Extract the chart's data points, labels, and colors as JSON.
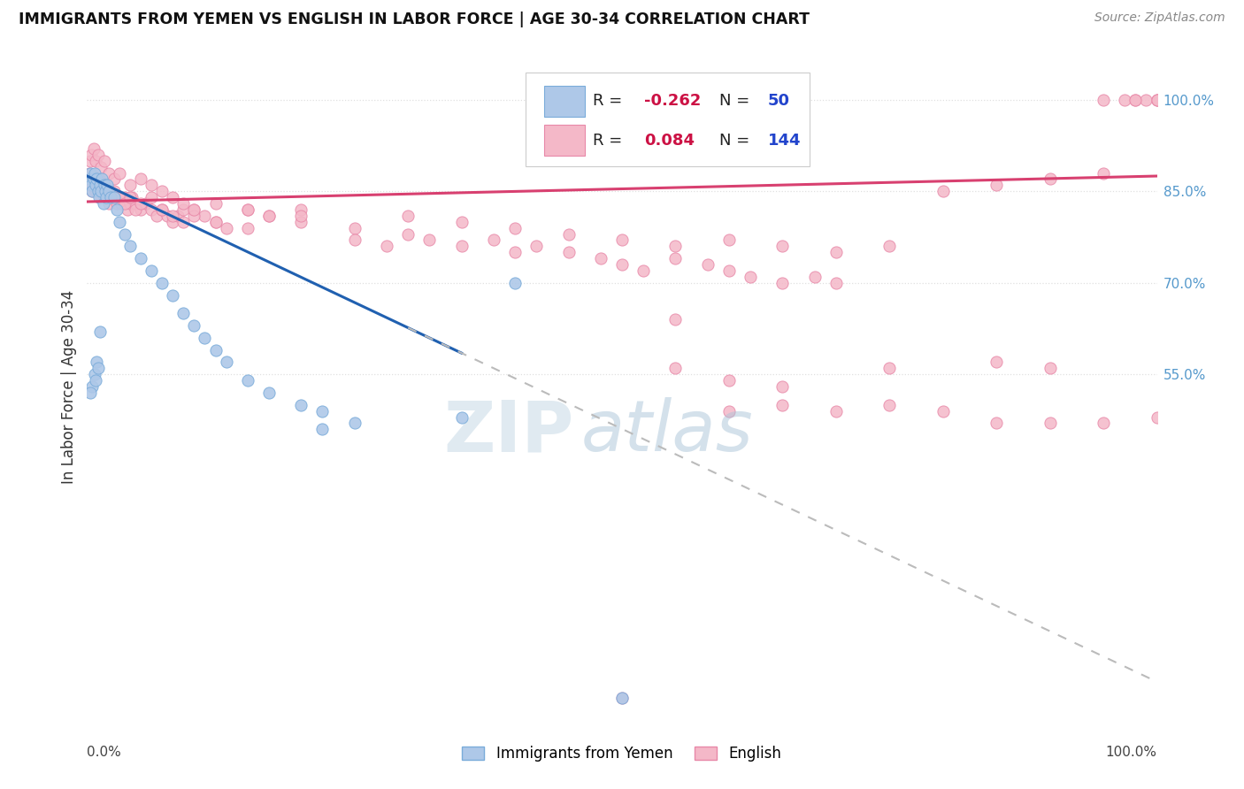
{
  "title": "IMMIGRANTS FROM YEMEN VS ENGLISH IN LABOR FORCE | AGE 30-34 CORRELATION CHART",
  "source": "Source: ZipAtlas.com",
  "ylabel": "In Labor Force | Age 30-34",
  "blue_R": -0.262,
  "blue_N": 50,
  "pink_R": 0.084,
  "pink_N": 144,
  "blue_scatter_color": "#aec8e8",
  "pink_scatter_color": "#f4b8c8",
  "blue_edge_color": "#7aacda",
  "pink_edge_color": "#e888a8",
  "blue_line_color": "#2060b0",
  "pink_line_color": "#d84070",
  "dashed_line_color": "#bbbbbb",
  "grid_color": "#e0e0e0",
  "background_color": "#ffffff",
  "blue_x": [
    0.002,
    0.003,
    0.004,
    0.005,
    0.006,
    0.007,
    0.008,
    0.009,
    0.01,
    0.011,
    0.012,
    0.013,
    0.014,
    0.015,
    0.016,
    0.017,
    0.018,
    0.019,
    0.02,
    0.022,
    0.025,
    0.028,
    0.03,
    0.035,
    0.04,
    0.05,
    0.06,
    0.07,
    0.08,
    0.09,
    0.1,
    0.11,
    0.12,
    0.13,
    0.15,
    0.17,
    0.2,
    0.22,
    0.25,
    0.005,
    0.007,
    0.009,
    0.01,
    0.012,
    0.5,
    0.35,
    0.4,
    0.003,
    0.008,
    0.22
  ],
  "blue_y": [
    0.87,
    0.88,
    0.86,
    0.85,
    0.87,
    0.88,
    0.86,
    0.87,
    0.85,
    0.84,
    0.86,
    0.85,
    0.87,
    0.83,
    0.86,
    0.85,
    0.84,
    0.86,
    0.85,
    0.84,
    0.84,
    0.82,
    0.8,
    0.78,
    0.76,
    0.74,
    0.72,
    0.7,
    0.68,
    0.65,
    0.63,
    0.61,
    0.59,
    0.57,
    0.54,
    0.52,
    0.5,
    0.49,
    0.47,
    0.53,
    0.55,
    0.57,
    0.56,
    0.62,
    0.02,
    0.48,
    0.7,
    0.52,
    0.54,
    0.46
  ],
  "pink_x": [
    0.002,
    0.003,
    0.004,
    0.005,
    0.006,
    0.007,
    0.008,
    0.009,
    0.01,
    0.011,
    0.012,
    0.013,
    0.014,
    0.015,
    0.016,
    0.017,
    0.018,
    0.019,
    0.02,
    0.022,
    0.025,
    0.028,
    0.03,
    0.032,
    0.035,
    0.038,
    0.04,
    0.042,
    0.045,
    0.05,
    0.055,
    0.06,
    0.065,
    0.07,
    0.075,
    0.08,
    0.085,
    0.09,
    0.1,
    0.11,
    0.12,
    0.13,
    0.15,
    0.17,
    0.2,
    0.003,
    0.005,
    0.007,
    0.009,
    0.012,
    0.015,
    0.018,
    0.022,
    0.025,
    0.03,
    0.035,
    0.04,
    0.045,
    0.05,
    0.06,
    0.07,
    0.08,
    0.09,
    0.1,
    0.12,
    0.15,
    0.17,
    0.2,
    0.25,
    0.3,
    0.35,
    0.4,
    0.45,
    0.5,
    0.55,
    0.6,
    0.65,
    0.7,
    0.75,
    0.8,
    0.85,
    0.9,
    0.95,
    1.0,
    0.25,
    0.28,
    0.3,
    0.32,
    0.35,
    0.38,
    0.4,
    0.42,
    0.45,
    0.48,
    0.5,
    0.52,
    0.55,
    0.58,
    0.6,
    0.62,
    0.65,
    0.68,
    0.7,
    0.003,
    0.004,
    0.006,
    0.008,
    0.01,
    0.013,
    0.016,
    0.02,
    0.025,
    0.03,
    0.04,
    0.05,
    0.06,
    0.07,
    0.08,
    0.09,
    0.1,
    0.12,
    0.15,
    0.2,
    0.55,
    0.6,
    0.65,
    0.75,
    0.85,
    0.9,
    0.55,
    0.5,
    0.6,
    0.65,
    0.7,
    0.75,
    0.8,
    0.85,
    0.9,
    0.95,
    1.0,
    0.95,
    0.98,
    1.0,
    0.97,
    0.99,
    1.0,
    0.98
  ],
  "pink_y": [
    0.88,
    0.86,
    0.87,
    0.85,
    0.86,
    0.87,
    0.85,
    0.86,
    0.87,
    0.85,
    0.86,
    0.84,
    0.85,
    0.86,
    0.84,
    0.85,
    0.84,
    0.85,
    0.83,
    0.85,
    0.84,
    0.83,
    0.84,
    0.83,
    0.84,
    0.82,
    0.83,
    0.84,
    0.83,
    0.82,
    0.83,
    0.82,
    0.81,
    0.82,
    0.81,
    0.8,
    0.81,
    0.8,
    0.82,
    0.81,
    0.8,
    0.79,
    0.82,
    0.81,
    0.82,
    0.87,
    0.86,
    0.87,
    0.86,
    0.85,
    0.86,
    0.85,
    0.84,
    0.85,
    0.84,
    0.83,
    0.84,
    0.82,
    0.83,
    0.84,
    0.82,
    0.81,
    0.82,
    0.81,
    0.8,
    0.79,
    0.81,
    0.8,
    0.79,
    0.81,
    0.8,
    0.79,
    0.78,
    0.77,
    0.76,
    0.77,
    0.76,
    0.75,
    0.76,
    0.85,
    0.86,
    0.87,
    0.88,
    1.0,
    0.77,
    0.76,
    0.78,
    0.77,
    0.76,
    0.77,
    0.75,
    0.76,
    0.75,
    0.74,
    0.73,
    0.72,
    0.74,
    0.73,
    0.72,
    0.71,
    0.7,
    0.71,
    0.7,
    0.9,
    0.91,
    0.92,
    0.9,
    0.91,
    0.89,
    0.9,
    0.88,
    0.87,
    0.88,
    0.86,
    0.87,
    0.86,
    0.85,
    0.84,
    0.83,
    0.82,
    0.83,
    0.82,
    0.81,
    0.56,
    0.54,
    0.53,
    0.56,
    0.57,
    0.56,
    0.64,
    0.02,
    0.49,
    0.5,
    0.49,
    0.5,
    0.49,
    0.47,
    0.47,
    0.47,
    0.48,
    1.0,
    1.0,
    1.0,
    1.0,
    1.0,
    1.0,
    1.0
  ]
}
